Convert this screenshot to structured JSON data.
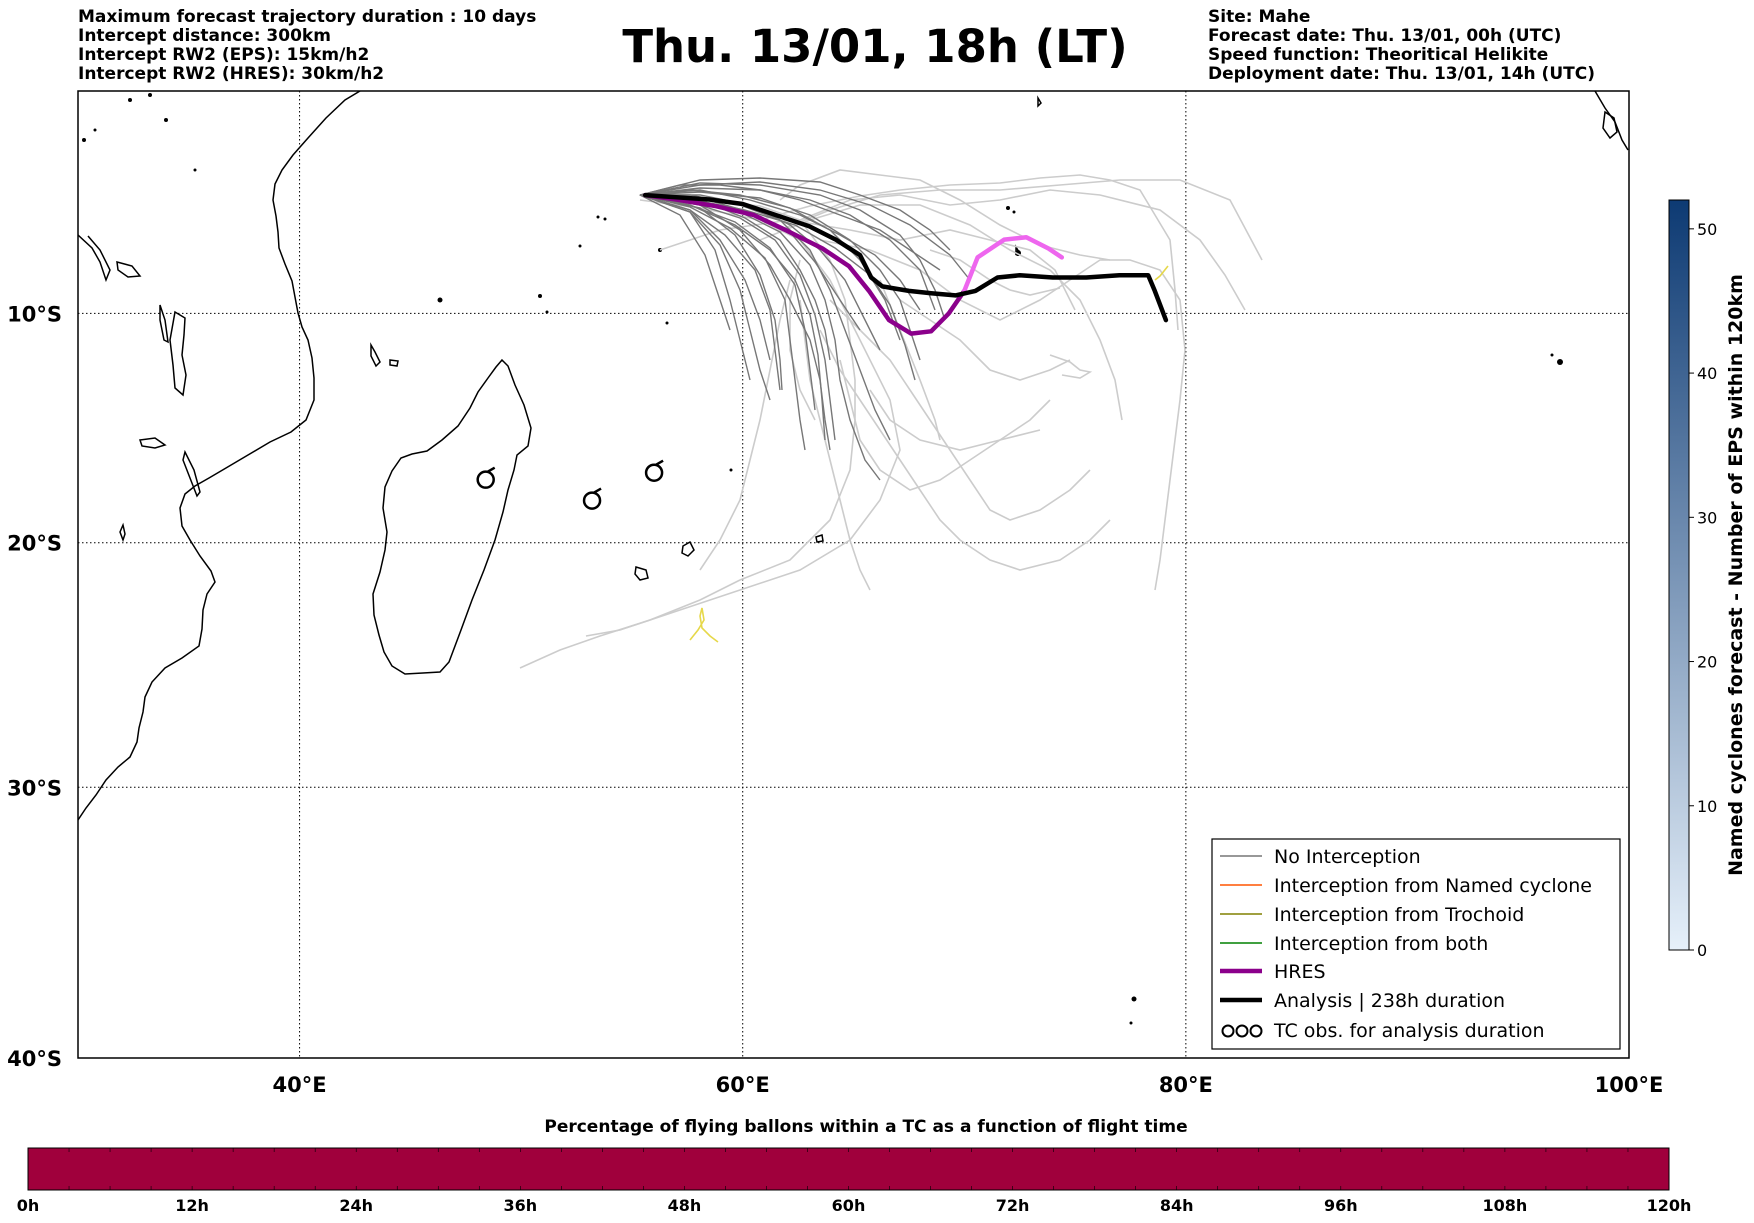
{
  "header": {
    "title": "Thu. 13/01, 18h (LT)",
    "left_lines": [
      "Maximum forecast trajectory duration : 10 days",
      "Intercept distance: 300km",
      "Intercept RW2 (EPS):  15km/h2",
      "Intercept RW2 (HRES): 30km/h2"
    ],
    "right_lines": [
      "Site: Mahe",
      "Forecast date: Thu. 13/01, 00h (UTC)",
      "Speed function: Theoritical Helikite",
      "Deployment date: Thu. 13/01, 14h (UTC)"
    ]
  },
  "map": {
    "extent": {
      "lon": [
        30,
        100
      ],
      "lat": [
        -40,
        0
      ]
    },
    "lon_ticks": [
      {
        "value": 40,
        "label": "40°E"
      },
      {
        "value": 60,
        "label": "60°E"
      },
      {
        "value": 80,
        "label": "80°E"
      },
      {
        "value": 100,
        "label": "100°E"
      }
    ],
    "lat_ticks": [
      {
        "value": -10,
        "label": "10°S"
      },
      {
        "value": -20,
        "label": "20°S"
      },
      {
        "value": -30,
        "label": "30°S"
      },
      {
        "value": -40,
        "label": "40°S"
      }
    ],
    "grid": "dotted",
    "colors": {
      "no_interception": "#777777",
      "faded_members": "#cccccc",
      "named_cyclone": "#ff5500",
      "trochoid": "#808000",
      "both": "#008000",
      "hres": "#8b008b",
      "hres_late": "#ee66ee",
      "analysis": "#000000",
      "tc_obs": "#000000",
      "yellow_track": "#e6d84a"
    },
    "analysis_track": [
      [
        55.6,
        -4.7
      ],
      [
        57,
        -4.8
      ],
      [
        58.5,
        -4.9
      ],
      [
        60,
        -5.1
      ],
      [
        61.5,
        -5.6
      ],
      [
        63,
        -6.1
      ],
      [
        64.2,
        -6.7
      ],
      [
        65.3,
        -7.4
      ],
      [
        65.8,
        -8.4
      ],
      [
        66.3,
        -8.8
      ],
      [
        67.5,
        -9
      ],
      [
        68.5,
        -9.1
      ],
      [
        69.6,
        -9.2
      ],
      [
        70.5,
        -9
      ],
      [
        71.5,
        -8.4
      ],
      [
        72.5,
        -8.3
      ],
      [
        74,
        -8.4
      ],
      [
        75.5,
        -8.4
      ],
      [
        77,
        -8.3
      ],
      [
        78.3,
        -8.3
      ],
      [
        78.6,
        -9
      ],
      [
        79.1,
        -10.3
      ]
    ],
    "hres_track": [
      [
        55.6,
        -4.7
      ],
      [
        57,
        -4.9
      ],
      [
        58.8,
        -5.2
      ],
      [
        60.5,
        -5.6
      ],
      [
        62,
        -6.3
      ],
      [
        63.6,
        -7.1
      ],
      [
        64.8,
        -7.9
      ],
      [
        65.7,
        -9
      ],
      [
        66.6,
        -10.3
      ],
      [
        67.6,
        -10.9
      ],
      [
        68.5,
        -10.8
      ],
      [
        69.3,
        -10
      ],
      [
        70,
        -9
      ],
      [
        70.6,
        -7.5
      ],
      [
        71.8,
        -6.7
      ],
      [
        72.8,
        -6.6
      ],
      [
        73.8,
        -7.1
      ],
      [
        74.4,
        -7.5
      ]
    ],
    "tc_obs": [
      [
        48.4,
        -17.3
      ],
      [
        53.2,
        -18.2
      ],
      [
        56,
        -17
      ]
    ],
    "legend": [
      {
        "label": "No Interception",
        "style": "no_interception"
      },
      {
        "label": "Interception from Named cyclone",
        "style": "named_cyclone"
      },
      {
        "label": "Interception from Trochoid",
        "style": "trochoid"
      },
      {
        "label": "Interception from both",
        "style": "both"
      },
      {
        "label": "HRES",
        "style": "hres"
      },
      {
        "label": "Analysis | 238h duration",
        "style": "analysis"
      },
      {
        "label": "TC obs. for analysis duration",
        "style": "tc_obs"
      }
    ]
  },
  "eps_colorbar": {
    "label": "Named cyclones forecast - Number of EPS within 120km",
    "min": 0,
    "max": 52,
    "ticks": [
      0,
      10,
      20,
      30,
      40,
      50
    ],
    "color_low": "#e6f0fa",
    "color_high": "#0d3a73"
  },
  "flight_colorbar": {
    "title": "Percentage of flying ballons within a TC as a function of flight time",
    "ticks": [
      "0h",
      "12h",
      "24h",
      "36h",
      "48h",
      "60h",
      "72h",
      "84h",
      "96h",
      "108h",
      "120h"
    ],
    "fill_color": "#a0003c",
    "value_percent": 0
  }
}
